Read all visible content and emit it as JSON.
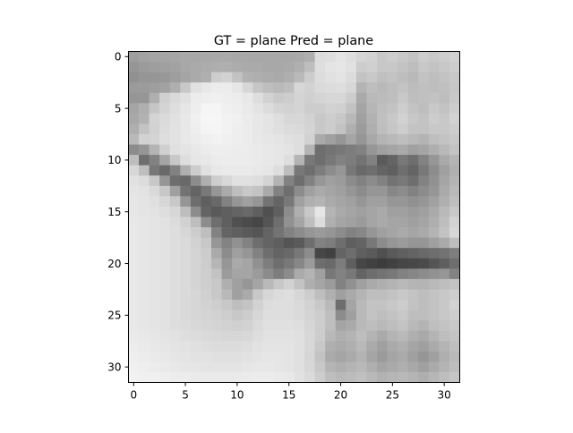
{
  "figure": {
    "title": "GT = plane Pred = plane"
  },
  "chart_data": {
    "type": "heatmap",
    "title": "GT = plane Pred = plane",
    "colormap": "gray",
    "grid": false,
    "rows": 32,
    "cols": 32,
    "xlim": [
      -0.5,
      31.5
    ],
    "ylim": [
      31.5,
      -0.5
    ],
    "x_ticks": [
      0,
      5,
      10,
      15,
      20,
      25,
      30
    ],
    "y_ticks": [
      0,
      5,
      10,
      15,
      20,
      25,
      30
    ],
    "x_tick_labels": [
      "0",
      "5",
      "10",
      "15",
      "20",
      "25",
      "30"
    ],
    "y_tick_labels": [
      "0",
      "5",
      "10",
      "15",
      "20",
      "25",
      "30"
    ],
    "pixels": [
      [
        158,
        162,
        165,
        165,
        166,
        168,
        168,
        168,
        169,
        170,
        168,
        168,
        168,
        168,
        168,
        168,
        170,
        175,
        220,
        222,
        228,
        222,
        214,
        210,
        200,
        205,
        200,
        195,
        205,
        200,
        205,
        210
      ],
      [
        150,
        155,
        158,
        160,
        162,
        168,
        170,
        172,
        174,
        175,
        172,
        170,
        170,
        168,
        168,
        170,
        175,
        190,
        222,
        228,
        230,
        225,
        205,
        208,
        200,
        200,
        195,
        190,
        200,
        195,
        200,
        205
      ],
      [
        145,
        150,
        150,
        152,
        158,
        165,
        170,
        175,
        205,
        210,
        195,
        178,
        175,
        172,
        170,
        175,
        185,
        205,
        220,
        225,
        228,
        220,
        195,
        200,
        192,
        195,
        190,
        185,
        195,
        190,
        195,
        200
      ],
      [
        155,
        155,
        158,
        162,
        175,
        200,
        225,
        232,
        236,
        236,
        230,
        215,
        198,
        190,
        185,
        190,
        215,
        210,
        218,
        220,
        222,
        215,
        180,
        190,
        185,
        190,
        195,
        188,
        192,
        190,
        192,
        198
      ],
      [
        150,
        150,
        175,
        208,
        218,
        225,
        236,
        238,
        240,
        238,
        236,
        232,
        222,
        210,
        202,
        205,
        212,
        208,
        212,
        215,
        215,
        205,
        170,
        185,
        188,
        190,
        200,
        190,
        192,
        195,
        190,
        200
      ],
      [
        165,
        175,
        198,
        212,
        222,
        230,
        238,
        245,
        245,
        240,
        238,
        234,
        228,
        220,
        212,
        210,
        212,
        205,
        205,
        210,
        208,
        195,
        165,
        182,
        190,
        195,
        205,
        195,
        190,
        200,
        195,
        205
      ],
      [
        168,
        178,
        212,
        218,
        225,
        232,
        240,
        246,
        246,
        242,
        240,
        236,
        232,
        228,
        222,
        215,
        215,
        210,
        200,
        205,
        200,
        185,
        160,
        178,
        192,
        200,
        210,
        200,
        195,
        205,
        200,
        210
      ],
      [
        175,
        195,
        210,
        220,
        226,
        232,
        238,
        244,
        245,
        242,
        238,
        236,
        232,
        228,
        224,
        220,
        218,
        212,
        200,
        205,
        195,
        175,
        155,
        175,
        190,
        198,
        205,
        195,
        195,
        200,
        200,
        205
      ],
      [
        185,
        210,
        212,
        222,
        226,
        232,
        236,
        240,
        242,
        240,
        238,
        236,
        232,
        230,
        228,
        224,
        222,
        210,
        170,
        160,
        150,
        165,
        150,
        168,
        180,
        185,
        190,
        185,
        180,
        190,
        195,
        200
      ],
      [
        140,
        150,
        180,
        208,
        224,
        228,
        232,
        236,
        238,
        238,
        236,
        236,
        234,
        232,
        230,
        228,
        222,
        180,
        110,
        115,
        120,
        125,
        130,
        150,
        160,
        165,
        170,
        160,
        165,
        175,
        185,
        195
      ],
      [
        190,
        110,
        130,
        165,
        200,
        222,
        230,
        232,
        235,
        236,
        236,
        236,
        234,
        232,
        230,
        222,
        180,
        120,
        110,
        120,
        130,
        125,
        115,
        130,
        90,
        100,
        120,
        110,
        130,
        150,
        170,
        180
      ],
      [
        215,
        190,
        120,
        105,
        130,
        175,
        205,
        225,
        232,
        234,
        234,
        234,
        232,
        230,
        222,
        190,
        120,
        110,
        125,
        140,
        150,
        120,
        105,
        110,
        100,
        95,
        110,
        100,
        120,
        140,
        160,
        175
      ],
      [
        225,
        220,
        200,
        150,
        110,
        105,
        140,
        175,
        205,
        215,
        225,
        225,
        222,
        212,
        180,
        130,
        110,
        130,
        150,
        160,
        155,
        140,
        130,
        140,
        130,
        115,
        120,
        110,
        130,
        145,
        165,
        180
      ],
      [
        228,
        226,
        218,
        200,
        160,
        115,
        100,
        120,
        150,
        170,
        190,
        200,
        195,
        170,
        130,
        110,
        140,
        160,
        170,
        165,
        160,
        150,
        140,
        150,
        150,
        135,
        140,
        130,
        140,
        150,
        170,
        185
      ],
      [
        230,
        228,
        224,
        215,
        200,
        150,
        110,
        95,
        105,
        130,
        150,
        160,
        150,
        115,
        100,
        120,
        160,
        175,
        180,
        170,
        165,
        160,
        150,
        160,
        160,
        150,
        150,
        145,
        150,
        160,
        175,
        190
      ],
      [
        230,
        228,
        226,
        222,
        215,
        190,
        140,
        100,
        90,
        95,
        100,
        105,
        95,
        80,
        95,
        140,
        175,
        200,
        230,
        180,
        170,
        165,
        160,
        165,
        170,
        160,
        160,
        155,
        160,
        170,
        185,
        200
      ],
      [
        232,
        230,
        228,
        226,
        220,
        210,
        190,
        140,
        110,
        95,
        80,
        75,
        70,
        85,
        110,
        145,
        165,
        190,
        220,
        175,
        165,
        160,
        155,
        165,
        170,
        165,
        165,
        160,
        165,
        175,
        190,
        210
      ],
      [
        232,
        230,
        228,
        226,
        222,
        215,
        205,
        190,
        130,
        100,
        95,
        90,
        85,
        100,
        115,
        130,
        140,
        150,
        155,
        150,
        140,
        130,
        135,
        150,
        160,
        165,
        170,
        165,
        170,
        180,
        195,
        215
      ],
      [
        232,
        230,
        228,
        226,
        222,
        218,
        210,
        200,
        150,
        130,
        145,
        130,
        110,
        100,
        95,
        85,
        90,
        110,
        130,
        125,
        110,
        95,
        100,
        120,
        140,
        150,
        155,
        150,
        150,
        160,
        170,
        190
      ],
      [
        232,
        230,
        228,
        226,
        222,
        218,
        212,
        204,
        170,
        140,
        160,
        150,
        130,
        110,
        100,
        105,
        120,
        140,
        70,
        65,
        100,
        110,
        95,
        90,
        80,
        90,
        95,
        100,
        105,
        110,
        115,
        125
      ],
      [
        232,
        230,
        228,
        226,
        222,
        218,
        212,
        205,
        182,
        150,
        170,
        165,
        145,
        125,
        110,
        120,
        135,
        155,
        110,
        105,
        125,
        95,
        70,
        65,
        60,
        65,
        70,
        72,
        75,
        85,
        95,
        110
      ],
      [
        232,
        230,
        228,
        226,
        222,
        218,
        212,
        206,
        195,
        155,
        165,
        165,
        155,
        140,
        125,
        140,
        170,
        180,
        160,
        120,
        130,
        120,
        100,
        110,
        115,
        120,
        130,
        135,
        140,
        145,
        150,
        130
      ],
      [
        232,
        230,
        228,
        226,
        222,
        218,
        212,
        206,
        200,
        175,
        160,
        150,
        165,
        185,
        200,
        210,
        195,
        175,
        165,
        155,
        130,
        145,
        160,
        170,
        175,
        180,
        185,
        180,
        180,
        185,
        190,
        195
      ],
      [
        232,
        230,
        228,
        226,
        222,
        218,
        214,
        208,
        200,
        185,
        160,
        170,
        200,
        215,
        220,
        222,
        215,
        205,
        190,
        175,
        160,
        170,
        180,
        190,
        190,
        195,
        200,
        195,
        190,
        195,
        200,
        205
      ],
      [
        232,
        230,
        228,
        226,
        222,
        218,
        214,
        210,
        206,
        200,
        190,
        195,
        210,
        220,
        222,
        222,
        218,
        210,
        200,
        185,
        110,
        165,
        185,
        195,
        195,
        200,
        205,
        195,
        190,
        195,
        200,
        210
      ],
      [
        232,
        230,
        228,
        226,
        222,
        218,
        214,
        212,
        210,
        206,
        200,
        205,
        215,
        222,
        222,
        222,
        218,
        212,
        205,
        190,
        140,
        160,
        185,
        195,
        190,
        195,
        200,
        190,
        190,
        195,
        200,
        205
      ],
      [
        232,
        230,
        228,
        226,
        222,
        220,
        216,
        214,
        212,
        210,
        208,
        210,
        218,
        224,
        224,
        224,
        222,
        214,
        205,
        190,
        165,
        170,
        185,
        190,
        185,
        190,
        195,
        185,
        180,
        190,
        195,
        200
      ],
      [
        234,
        232,
        230,
        228,
        226,
        222,
        220,
        218,
        216,
        214,
        214,
        216,
        222,
        226,
        226,
        226,
        224,
        216,
        205,
        185,
        175,
        180,
        190,
        180,
        170,
        180,
        185,
        175,
        170,
        180,
        190,
        195
      ],
      [
        236,
        234,
        232,
        230,
        228,
        226,
        224,
        222,
        220,
        220,
        220,
        222,
        226,
        228,
        228,
        228,
        224,
        216,
        200,
        175,
        170,
        175,
        185,
        170,
        160,
        170,
        175,
        165,
        160,
        170,
        180,
        190
      ],
      [
        238,
        236,
        234,
        232,
        230,
        228,
        226,
        226,
        224,
        224,
        224,
        226,
        228,
        230,
        230,
        228,
        224,
        214,
        195,
        170,
        165,
        170,
        180,
        165,
        155,
        165,
        170,
        160,
        150,
        160,
        175,
        185
      ],
      [
        240,
        238,
        236,
        234,
        232,
        230,
        230,
        228,
        228,
        228,
        228,
        230,
        232,
        232,
        230,
        228,
        224,
        215,
        200,
        180,
        175,
        180,
        185,
        175,
        165,
        170,
        175,
        168,
        160,
        170,
        180,
        190
      ],
      [
        242,
        240,
        240,
        238,
        236,
        236,
        234,
        234,
        234,
        234,
        234,
        235,
        236,
        236,
        234,
        232,
        226,
        218,
        205,
        190,
        185,
        188,
        192,
        185,
        178,
        182,
        185,
        180,
        175,
        182,
        190,
        198
      ]
    ]
  }
}
